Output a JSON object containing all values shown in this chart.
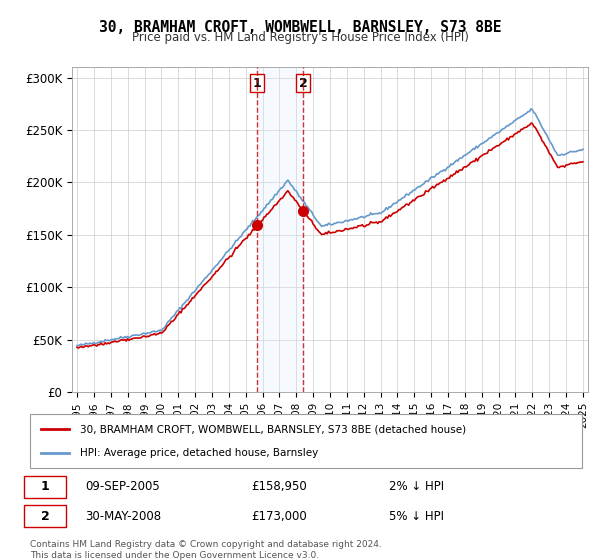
{
  "title": "30, BRAMHAM CROFT, WOMBWELL, BARNSLEY, S73 8BE",
  "subtitle": "Price paid vs. HM Land Registry's House Price Index (HPI)",
  "legend_entry1": "30, BRAMHAM CROFT, WOMBWELL, BARNSLEY, S73 8BE (detached house)",
  "legend_entry2": "HPI: Average price, detached house, Barnsley",
  "transaction1_label": "1",
  "transaction1_date": "09-SEP-2005",
  "transaction1_price": "£158,950",
  "transaction1_hpi": "2% ↓ HPI",
  "transaction2_label": "2",
  "transaction2_date": "30-MAY-2008",
  "transaction2_price": "£173,000",
  "transaction2_hpi": "5% ↓ HPI",
  "footer": "Contains HM Land Registry data © Crown copyright and database right 2024.\nThis data is licensed under the Open Government Licence v3.0.",
  "property_color": "#cc0000",
  "hpi_color": "#6699cc",
  "shaded_color": "#ddeeff",
  "marker_vline_color": "#cc0000",
  "ylim_min": 0,
  "ylim_max": 310000,
  "yticks": [
    0,
    50000,
    100000,
    150000,
    200000,
    250000,
    300000
  ],
  "ytick_labels": [
    "£0",
    "£50K",
    "£100K",
    "£150K",
    "£200K",
    "£250K",
    "£300K"
  ],
  "transaction1_x": 2005.69,
  "transaction2_x": 2008.41,
  "transaction1_y": 158950,
  "transaction2_y": 173000,
  "x_start": 1995,
  "x_end": 2025,
  "xtick_years": [
    1995,
    1996,
    1997,
    1998,
    1999,
    2000,
    2001,
    2002,
    2003,
    2004,
    2005,
    2006,
    2007,
    2008,
    2009,
    2010,
    2011,
    2012,
    2013,
    2014,
    2015,
    2016,
    2017,
    2018,
    2019,
    2020,
    2021,
    2022,
    2023,
    2024,
    2025
  ]
}
